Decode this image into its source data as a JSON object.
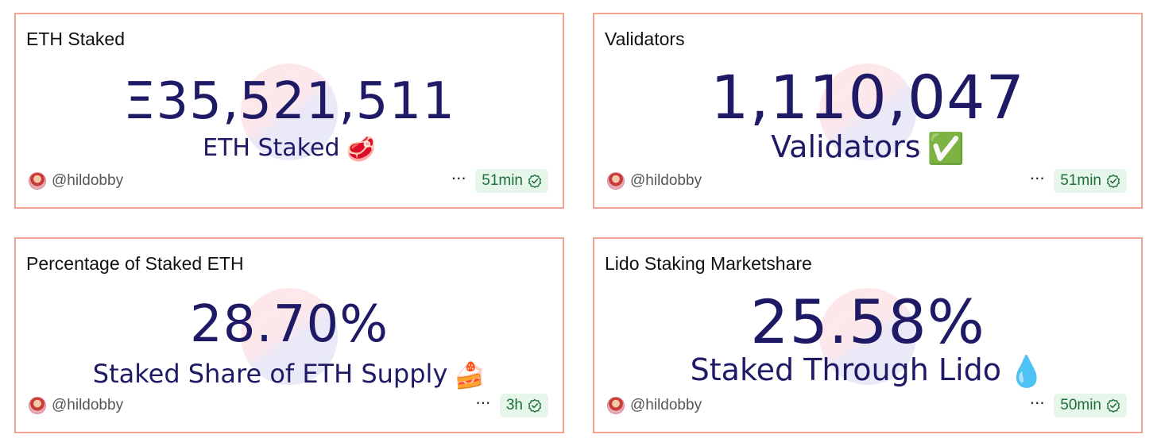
{
  "cards": [
    {
      "title": "ETH Staked",
      "value": "Ξ35,521,511",
      "label": "ETH Staked",
      "label_emoji": "🥩",
      "author": "@hildobby",
      "more": "···",
      "freshness": "51min"
    },
    {
      "title": "Validators",
      "value": "1,110,047",
      "label": "Validators",
      "label_emoji": "✅",
      "author": "@hildobby",
      "more": "···",
      "freshness": "51min"
    },
    {
      "title": "Percentage of Staked ETH",
      "value": "28.70%",
      "label": "Staked Share of ETH Supply",
      "label_emoji": "🍰",
      "author": "@hildobby",
      "more": "···",
      "freshness": "3h"
    },
    {
      "title": "Lido Staking Marketshare",
      "value": "25.58%",
      "label": "Staked Through Lido",
      "label_emoji": "💧",
      "author": "@hildobby",
      "more": "···",
      "freshness": "50min"
    }
  ],
  "colors": {
    "card_border": "#f1a591",
    "value_text": "#1e1a66",
    "badge_bg": "#e6f6ea",
    "badge_text": "#1f6e3a"
  },
  "icons": {
    "verified": "check-circle-icon",
    "more": "ellipsis-icon",
    "avatar": "user-avatar"
  }
}
